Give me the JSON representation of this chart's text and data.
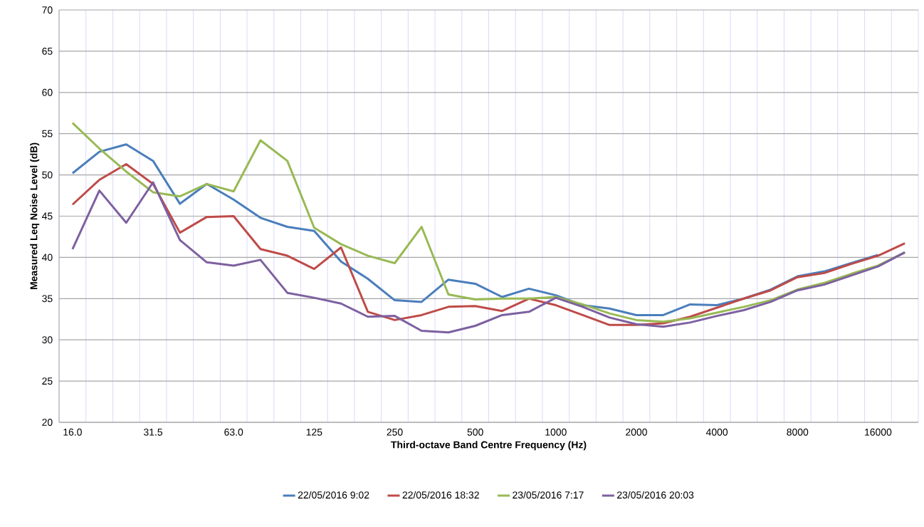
{
  "chart_data": {
    "type": "line",
    "xlabel": "Third-octave Band Centre Frequency (Hz)",
    "ylabel": "Measured Leq Noise Level (dB)",
    "categories": [
      "16.0",
      null,
      null,
      "31.5",
      null,
      null,
      "63.0",
      null,
      null,
      "125",
      null,
      null,
      "250",
      null,
      null,
      "500",
      null,
      null,
      "1000",
      null,
      null,
      "2000",
      null,
      null,
      "4000",
      null,
      null,
      "8000",
      null,
      null,
      "16000",
      null
    ],
    "ylim": [
      20,
      70
    ],
    "yticks": [
      20,
      25,
      30,
      35,
      40,
      45,
      50,
      55,
      60,
      65,
      70
    ],
    "grid": true,
    "legend": "bottom",
    "marker": "none",
    "line_style": "solid",
    "series": [
      {
        "name": "22/05/2016 9:02",
        "color": "#4a7ebb",
        "values": [
          50.2,
          52.8,
          53.7,
          51.7,
          46.5,
          48.9,
          47.0,
          44.8,
          43.7,
          43.2,
          39.5,
          37.4,
          34.8,
          34.6,
          37.3,
          36.8,
          35.2,
          36.2,
          35.4,
          34.2,
          33.8,
          33.0,
          33.0,
          34.3,
          34.2,
          35.0,
          36.1,
          37.7,
          38.3,
          39.3,
          40.3,
          null
        ]
      },
      {
        "name": "22/05/2016 18:32",
        "color": "#be4b48",
        "values": [
          46.4,
          49.4,
          51.3,
          48.9,
          43.0,
          44.9,
          45.0,
          41.0,
          40.2,
          38.6,
          41.2,
          33.4,
          32.4,
          33.0,
          34.0,
          34.1,
          33.5,
          35.0,
          34.2,
          33.0,
          31.8,
          31.8,
          32.0,
          32.8,
          33.9,
          35.0,
          36.0,
          37.6,
          38.1,
          39.2,
          40.2,
          41.7
        ]
      },
      {
        "name": "23/05/2016 7:17",
        "color": "#98b954",
        "values": [
          56.3,
          53.2,
          50.4,
          47.9,
          47.4,
          48.9,
          48.0,
          54.2,
          51.7,
          43.6,
          41.6,
          40.2,
          39.3,
          43.7,
          35.5,
          34.9,
          35.0,
          35.0,
          35.2,
          34.3,
          33.2,
          32.4,
          32.2,
          32.6,
          33.3,
          34.0,
          34.8,
          36.1,
          36.9,
          38.0,
          39.0,
          40.6
        ]
      },
      {
        "name": "23/05/2016 20:03",
        "color": "#7d60a0",
        "values": [
          41.0,
          48.1,
          44.2,
          49.1,
          42.1,
          39.4,
          39.0,
          39.7,
          35.7,
          35.1,
          34.4,
          32.8,
          32.9,
          31.1,
          30.9,
          31.7,
          33.0,
          33.4,
          35.1,
          34.0,
          32.7,
          31.9,
          31.6,
          32.1,
          32.9,
          33.6,
          34.6,
          36.0,
          36.7,
          37.8,
          38.9,
          40.6
        ]
      }
    ]
  }
}
